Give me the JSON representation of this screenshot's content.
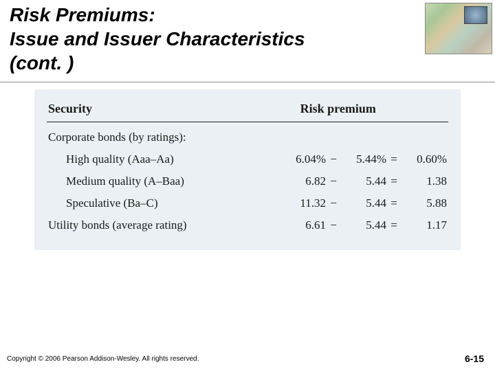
{
  "title": {
    "line1": "Risk Premiums:",
    "line2": "Issue and Issuer Characteristics",
    "line3": "(cont. )"
  },
  "table": {
    "background_color": "#eaf0f4",
    "columns": {
      "security": "Security",
      "premium": "Risk premium"
    },
    "group_label": "Corporate bonds (by ratings):",
    "rows": [
      {
        "label_indent": true,
        "label": "High quality (Aaa–Aa)",
        "a": "6.04%",
        "minus": "−",
        "b": "5.44%",
        "eq": "=",
        "r": "0.60%"
      },
      {
        "label_indent": true,
        "label": "Medium quality (A–Baa)",
        "a": "6.82",
        "minus": "−",
        "b": "5.44",
        "eq": "=",
        "r": "1.38"
      },
      {
        "label_indent": true,
        "label": "Speculative (Ba–C)",
        "a": "11.32",
        "minus": "−",
        "b": "5.44",
        "eq": "=",
        "r": "5.88"
      },
      {
        "label_indent": false,
        "label": "Utility bonds (average rating)",
        "a": "6.61",
        "minus": "−",
        "b": "5.44",
        "eq": "=",
        "r": "1.17"
      }
    ]
  },
  "footer": {
    "copyright": "Copyright © 2006 Pearson Addison-Wesley. All rights reserved.",
    "page": "6-15"
  }
}
